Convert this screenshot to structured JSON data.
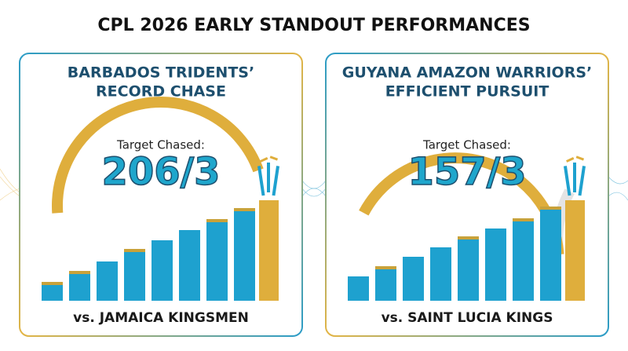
{
  "title": "CPL 2026 EARLY STANDOUT PERFORMANCES",
  "cards": [
    {
      "heading": [
        "BARBADOS TRIDENTS’",
        "RECORD CHASE"
      ],
      "label": "Target Chased:",
      "score": "206/3",
      "opponent": "vs. JAMAICA KINGSMEN"
    },
    {
      "heading": [
        "GUYANA AMAZON WARRIORS’",
        "EFFICIENT PURSUIT"
      ],
      "label": "Target Chased:",
      "score": "157/3",
      "opponent": "vs. SAINT LUCIA KINGS"
    }
  ]
}
